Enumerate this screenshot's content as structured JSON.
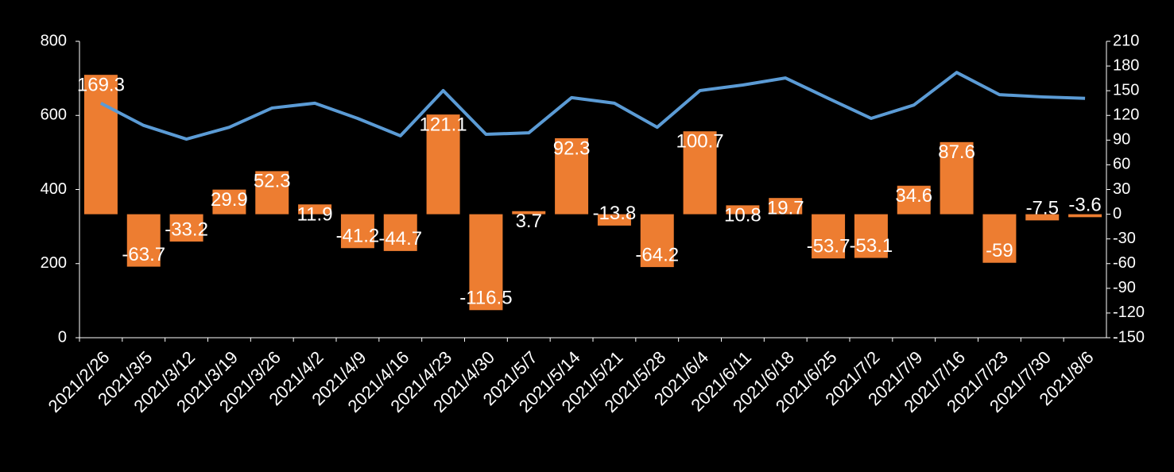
{
  "chart_data": {
    "type": "bar-line",
    "categories": [
      "2021/2/26",
      "2021/3/5",
      "2021/3/12",
      "2021/3/19",
      "2021/3/26",
      "2021/4/2",
      "2021/4/9",
      "2021/4/16",
      "2021/4/23",
      "2021/4/30",
      "2021/5/7",
      "2021/5/14",
      "2021/5/21",
      "2021/5/28",
      "2021/6/4",
      "2021/6/11",
      "2021/6/18",
      "2021/6/25",
      "2021/7/2",
      "2021/7/9",
      "2021/7/16",
      "2021/7/23",
      "2021/7/30",
      "2021/8/6"
    ],
    "series": [
      {
        "type": "bar",
        "axis": "y2",
        "color": "#ed7d31",
        "values": [
          169.3,
          -63.7,
          -33.2,
          29.9,
          52.3,
          11.9,
          -41.2,
          -44.7,
          121.1,
          -116.5,
          3.7,
          92.3,
          -13.8,
          -64.2,
          100.7,
          10.8,
          19.7,
          -53.7,
          -53.1,
          34.6,
          87.6,
          -59,
          -7.5,
          -3.6
        ]
      },
      {
        "type": "line",
        "axis": "y",
        "color": "#5b9bd5",
        "values": [
          633,
          573,
          536,
          568,
          620,
          633,
          592,
          545,
          667,
          549,
          553,
          648,
          633,
          568,
          667,
          682,
          701,
          646,
          592,
          628,
          716,
          656,
          650,
          646
        ]
      }
    ],
    "ylim": [
      0,
      800
    ],
    "yticks": [
      0,
      200,
      400,
      600,
      800
    ],
    "y2lim": [
      -150,
      210
    ],
    "y2ticks": [
      -150,
      -120,
      -90,
      -60,
      -30,
      0,
      30,
      60,
      90,
      120,
      150,
      180,
      210
    ]
  }
}
